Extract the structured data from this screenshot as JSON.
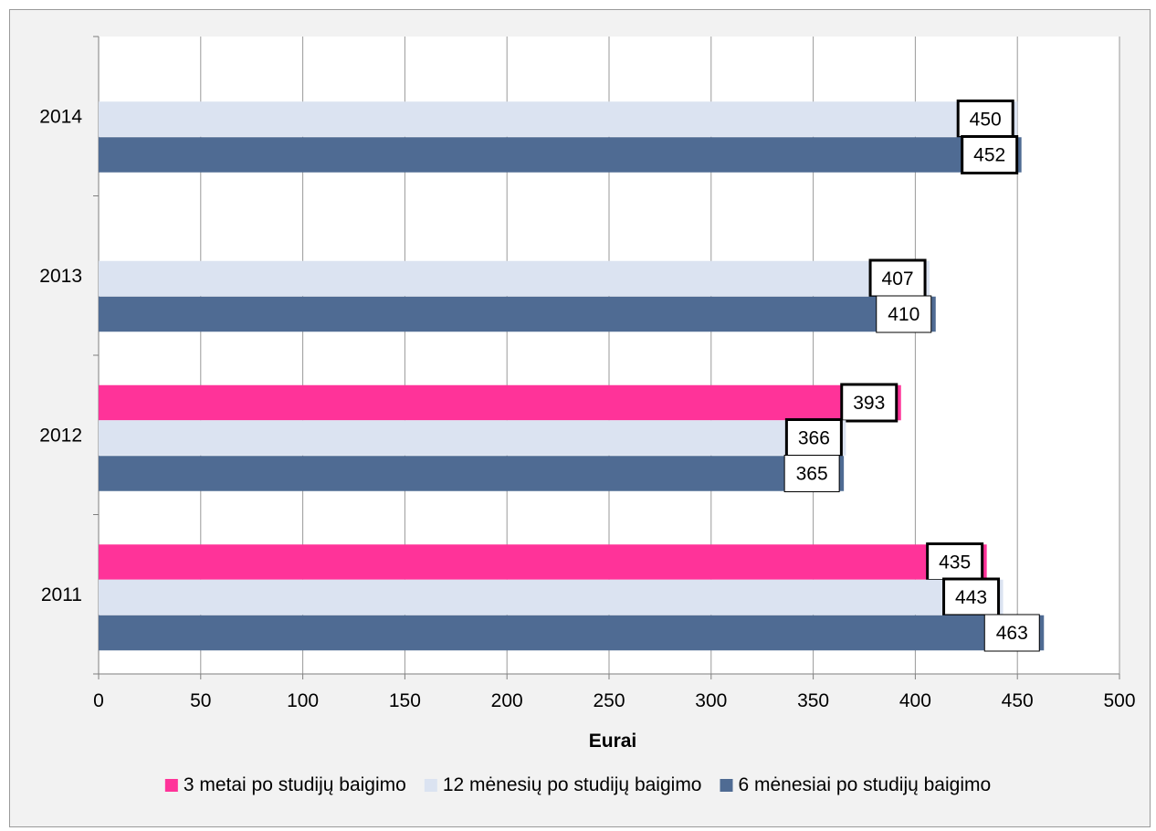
{
  "chart_data": {
    "type": "bar",
    "orientation": "horizontal",
    "categories": [
      "2011",
      "2012",
      "2013",
      "2014"
    ],
    "series": [
      {
        "name": "3 metai po studijų baigimo",
        "color": "#ff3399",
        "values": [
          435,
          393,
          null,
          null
        ]
      },
      {
        "name": "12 mėnesių po studijų baigimo",
        "color": "#dbe3f1",
        "values": [
          443,
          366,
          407,
          450
        ]
      },
      {
        "name": "6 mėnesiai po studijų baigimo",
        "color": "#4f6b93",
        "values": [
          463,
          365,
          410,
          452
        ]
      }
    ],
    "xlabel": "Eurai",
    "ylabel": "",
    "xlim": [
      0,
      500
    ],
    "xticks": [
      0,
      50,
      100,
      150,
      200,
      250,
      300,
      350,
      400,
      450,
      500
    ],
    "grid": true,
    "legend_position": "bottom",
    "data_labels": true
  }
}
